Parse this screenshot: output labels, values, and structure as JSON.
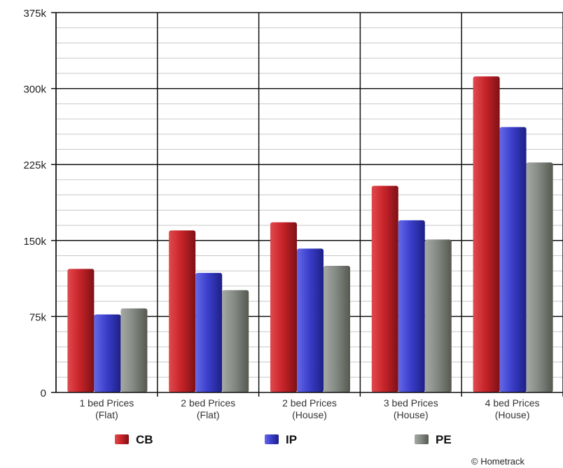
{
  "chart_data": {
    "type": "bar",
    "title": "",
    "xlabel": "",
    "ylabel": "",
    "ylim": [
      0,
      375000
    ],
    "y_ticks": [
      0,
      75000,
      150000,
      225000,
      300000,
      375000
    ],
    "y_tick_labels": [
      "0",
      "75k",
      "150k",
      "225k",
      "300k",
      "375k"
    ],
    "categories": [
      [
        "1 bed Prices",
        "(Flat)"
      ],
      [
        "2 bed Prices",
        "(Flat)"
      ],
      [
        "2 bed Prices",
        "(House)"
      ],
      [
        "3 bed Prices",
        "(House)"
      ],
      [
        "4 bed Prices",
        "(House)"
      ]
    ],
    "series": [
      {
        "name": "CB",
        "color": "#c8242a",
        "values": [
          122000,
          160000,
          168000,
          204000,
          312000
        ]
      },
      {
        "name": "IP",
        "color": "#3b3fcc",
        "values": [
          77000,
          118000,
          142000,
          170000,
          262000
        ]
      },
      {
        "name": "PE",
        "color": "#858a85",
        "values": [
          83000,
          101000,
          125000,
          151000,
          227000
        ]
      }
    ],
    "grid": true,
    "legend_position": "bottom",
    "credit": "© Hometrack"
  }
}
